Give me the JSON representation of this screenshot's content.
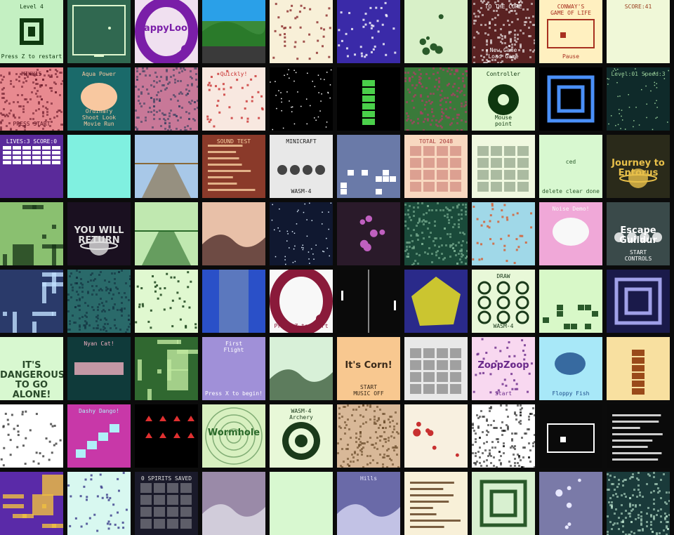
{
  "page": {
    "background": "#0b0b0b"
  },
  "tiles": [
    {
      "bg": "#c4f0c2",
      "fg": "#0f380f",
      "labels": [
        "Level 4",
        "",
        "Press Z to restart"
      ],
      "art": "qr"
    },
    {
      "bg": "#306850",
      "fg": "#e0f8d0",
      "labels": [
        "",
        "",
        ""
      ],
      "art": "breakout"
    },
    {
      "bg": "#f0e0f0",
      "fg": "#7a1ea8",
      "labels": [
        "",
        "TappyLoop",
        ""
      ],
      "art": "ring"
    },
    {
      "bg": "#3a8a3a",
      "fg": "#ffffff",
      "labels": [
        "",
        "",
        ""
      ],
      "art": "landscape"
    },
    {
      "bg": "#f8f0d8",
      "fg": "#8a2a2a",
      "labels": [
        "",
        "",
        ""
      ],
      "art": "scatter"
    },
    {
      "bg": "#3a2aa8",
      "fg": "#ffffff",
      "labels": [
        "",
        "",
        ""
      ],
      "art": "scatter"
    },
    {
      "bg": "#d8f0c8",
      "fg": "#2a5a2a",
      "labels": [
        "",
        "",
        ""
      ],
      "art": "dots"
    },
    {
      "bg": "#5a2222",
      "fg": "#ffffff",
      "labels": [
        "TO THE CORE",
        "",
        "New Game\nLoad Game"
      ],
      "art": "noise"
    },
    {
      "bg": "#fff0c0",
      "fg": "#a83020",
      "labels": [
        "CONWAY'S\nGAME OF LIFE",
        "",
        "Pause"
      ],
      "art": "window"
    },
    {
      "bg": "#f0f8d8",
      "fg": "#9a4020",
      "labels": [
        "SCORE:41",
        "",
        ""
      ],
      "art": "none"
    },
    {
      "bg": "#e88a90",
      "fg": "#601020",
      "labels": [
        "MIKU15",
        "",
        "PRESS START"
      ],
      "art": "noise"
    },
    {
      "bg": "#1a6a6a",
      "fg": "#f8c8a0",
      "labels": [
        "Aqua Power",
        "",
        "Ordinary\nShoot Look\nMovie Run"
      ],
      "art": "blob"
    },
    {
      "bg": "#c87898",
      "fg": "#2a3a5a",
      "labels": [
        "",
        "",
        ""
      ],
      "art": "noise"
    },
    {
      "bg": "#f8e8e0",
      "fg": "#c83030",
      "labels": [
        "Quickly!",
        "",
        ""
      ],
      "art": "scatter"
    },
    {
      "bg": "#000000",
      "fg": "#ffffff",
      "labels": [
        "",
        "",
        ""
      ],
      "art": "stars"
    },
    {
      "bg": "#000000",
      "fg": "#4ad04a",
      "labels": [
        "",
        "",
        ""
      ],
      "art": "tower"
    },
    {
      "bg": "#3a7a3a",
      "fg": "#c83070",
      "labels": [
        "",
        "",
        ""
      ],
      "art": "noise"
    },
    {
      "bg": "#e0f8d0",
      "fg": "#0f380f",
      "labels": [
        "Controller",
        "",
        "Mouse\npoint"
      ],
      "art": "disc"
    },
    {
      "bg": "#000000",
      "fg": "#4a90f8",
      "labels": [
        "",
        "",
        ""
      ],
      "art": "frame"
    },
    {
      "bg": "#0f2a2a",
      "fg": "#9ad09a",
      "labels": [
        "Level:01 Speed:3",
        "",
        ""
      ],
      "art": "stars"
    },
    {
      "bg": "#5a2a9a",
      "fg": "#ffffff",
      "labels": [
        "LIVES:3  SCORE:0",
        "",
        ""
      ],
      "art": "bricks"
    },
    {
      "bg": "#80f0e0",
      "fg": "#2a5a7a",
      "labels": [
        "",
        "",
        ""
      ],
      "art": "none"
    },
    {
      "bg": "#a8c8e8",
      "fg": "#8a6a3a",
      "labels": [
        "",
        "",
        ""
      ],
      "art": "road"
    },
    {
      "bg": "#8a3a2a",
      "fg": "#f8d0a0",
      "labels": [
        "SOUND TEST",
        "",
        ""
      ],
      "art": "lines"
    },
    {
      "bg": "#e8e8e8",
      "fg": "#1a1a1a",
      "labels": [
        "MINICRAFT",
        "",
        "WASM-4"
      ],
      "art": "trees"
    },
    {
      "bg": "#6a7aa8",
      "fg": "#ffffff",
      "labels": [
        "",
        "",
        ""
      ],
      "art": "tetris"
    },
    {
      "bg": "#f8d8c0",
      "fg": "#a83a3a",
      "labels": [
        "TOTAL 2048",
        "",
        ""
      ],
      "art": "cells"
    },
    {
      "bg": "#f0f8e0",
      "fg": "#2a4a2a",
      "labels": [
        "",
        "",
        ""
      ],
      "art": "cells"
    },
    {
      "bg": "#d8f8d0",
      "fg": "#2a5a2a",
      "labels": [
        "",
        "ced",
        "delete clear done"
      ],
      "art": "none"
    },
    {
      "bg": "#2a2a1a",
      "fg": "#e8c04a",
      "labels": [
        "",
        "Journey to Entorus",
        ""
      ],
      "art": "planet"
    },
    {
      "bg": "#8ac070",
      "fg": "#1a3a1a",
      "labels": [
        "",
        "",
        ""
      ],
      "art": "maze"
    },
    {
      "bg": "#1a1020",
      "fg": "#e0e0e0",
      "labels": [
        "",
        "YOU WILL RETURN",
        ""
      ],
      "art": "planet"
    },
    {
      "bg": "#c0e8b0",
      "fg": "#2a6a2a",
      "labels": [
        "",
        "",
        ""
      ],
      "art": "road"
    },
    {
      "bg": "#e8c0a8",
      "fg": "#3a1a1a",
      "labels": [
        "",
        "",
        ""
      ],
      "art": "hills"
    },
    {
      "bg": "#101830",
      "fg": "#e0f0ff",
      "labels": [
        "",
        "",
        ""
      ],
      "art": "stars"
    },
    {
      "bg": "#2a1a2a",
      "fg": "#c060c0",
      "labels": [
        "",
        "",
        ""
      ],
      "art": "dots"
    },
    {
      "bg": "#1a4a3a",
      "fg": "#8ac0a0",
      "labels": [
        "",
        "",
        ""
      ],
      "art": "noise"
    },
    {
      "bg": "#a0d8e8",
      "fg": "#d85a2a",
      "labels": [
        "",
        "",
        ""
      ],
      "art": "scatter"
    },
    {
      "bg": "#f0a8d8",
      "fg": "#f8f8f8",
      "labels": [
        "Noise Demo!",
        "",
        ""
      ],
      "art": "blob"
    },
    {
      "bg": "#3a4a4a",
      "fg": "#ffffff",
      "labels": [
        "",
        "Escape Guildur",
        "START\nCONTROLS"
      ],
      "art": "trees"
    },
    {
      "bg": "#2a3a6a",
      "fg": "#c0e0ff",
      "labels": [
        "",
        "",
        ""
      ],
      "art": "maze"
    },
    {
      "bg": "#2a6a6a",
      "fg": "#0f2a3a",
      "labels": [
        "",
        "",
        ""
      ],
      "art": "noise"
    },
    {
      "bg": "#e0f8d0",
      "fg": "#0f380f",
      "labels": [
        "",
        "",
        ""
      ],
      "art": "scatter"
    },
    {
      "bg": "#2a50c8",
      "fg": "#f0f0a0",
      "labels": [
        "",
        "",
        ""
      ],
      "art": "river"
    },
    {
      "bg": "#f8f8f8",
      "fg": "#8a1a3a",
      "labels": [
        "",
        "",
        "Press Z to Start"
      ],
      "art": "ring"
    },
    {
      "bg": "#0a0a0a",
      "fg": "#ffffff",
      "labels": [
        "",
        "",
        ""
      ],
      "art": "pong"
    },
    {
      "bg": "#2a2a8a",
      "fg": "#e8e020",
      "labels": [
        "",
        "",
        ""
      ],
      "art": "cube"
    },
    {
      "bg": "#e8f8d8",
      "fg": "#1a3a1a",
      "labels": [
        "DRAW",
        "",
        "WASM-4"
      ],
      "art": "tictac"
    },
    {
      "bg": "#d8f8c8",
      "fg": "#2a5a2a",
      "labels": [
        "",
        "",
        ""
      ],
      "art": "tetris"
    },
    {
      "bg": "#1a1a4a",
      "fg": "#a0a0e8",
      "labels": [
        "",
        "",
        ""
      ],
      "art": "frame"
    },
    {
      "bg": "#d8f8d0",
      "fg": "#2a4a2a",
      "labels": [
        "",
        "IT'S DANGEROUS\nTO GO ALONE!",
        ""
      ],
      "art": "none"
    },
    {
      "bg": "#0f3a3a",
      "fg": "#f0b0c0",
      "labels": [
        "Nyan Cat!",
        "",
        ""
      ],
      "art": "nyan"
    },
    {
      "bg": "#306830",
      "fg": "#c0e8a0",
      "labels": [
        "",
        "",
        ""
      ],
      "art": "maze"
    },
    {
      "bg": "#a090d8",
      "fg": "#ffffff",
      "labels": [
        "First\nFlight",
        "",
        "Press X to begin!"
      ],
      "art": "none"
    },
    {
      "bg": "#d8f0d8",
      "fg": "#2a4a2a",
      "labels": [
        "",
        "",
        ""
      ],
      "art": "hills"
    },
    {
      "bg": "#f8c890",
      "fg": "#3a2a1a",
      "labels": [
        "",
        "It's Corn!",
        "START\nMUSIC OFF"
      ],
      "art": "none"
    },
    {
      "bg": "#e8e8e8",
      "fg": "#1a1a1a",
      "labels": [
        "",
        "",
        ""
      ],
      "art": "cells"
    },
    {
      "bg": "#f8d8f0",
      "fg": "#6a2a8a",
      "labels": [
        "",
        "ZoopZoop",
        "Start"
      ],
      "art": "scatter"
    },
    {
      "bg": "#a8e8f8",
      "fg": "#1a4a8a",
      "labels": [
        "",
        "",
        "Floppy Fish"
      ],
      "art": "fish"
    },
    {
      "bg": "#f8e0a0",
      "fg": "#9a4a1a",
      "labels": [
        "",
        "",
        ""
      ],
      "art": "tower"
    },
    {
      "bg": "#ffffff",
      "fg": "#3a3a3a",
      "labels": [
        "",
        "",
        ""
      ],
      "art": "scatter"
    },
    {
      "bg": "#c838a8",
      "fg": "#b0f0f8",
      "labels": [
        "Dashy Dango!",
        "",
        ""
      ],
      "art": "stairs"
    },
    {
      "bg": "#000000",
      "fg": "#e03030",
      "labels": [
        "",
        "",
        ""
      ],
      "art": "arrows"
    },
    {
      "bg": "#d8f0c0",
      "fg": "#2a6a2a",
      "labels": [
        "",
        "Wormhole",
        ""
      ],
      "art": "rings"
    },
    {
      "bg": "#e8f8d8",
      "fg": "#1a3a1a",
      "labels": [
        "WASM-4\nArchery",
        "",
        ""
      ],
      "art": "target"
    },
    {
      "bg": "#d8b898",
      "fg": "#5a3a1a",
      "labels": [
        "",
        "",
        ""
      ],
      "art": "noise"
    },
    {
      "bg": "#f8f0e0",
      "fg": "#c83030",
      "labels": [
        "",
        "",
        ""
      ],
      "art": "dots"
    },
    {
      "bg": "#ffffff",
      "fg": "#0a0a0a",
      "labels": [
        "",
        "",
        ""
      ],
      "art": "noise"
    },
    {
      "bg": "#0a0a0a",
      "fg": "#ffffff",
      "labels": [
        "",
        "",
        ""
      ],
      "art": "window"
    },
    {
      "bg": "#0a0a0a",
      "fg": "#ffffff",
      "labels": [
        "",
        "",
        ""
      ],
      "art": "lines"
    },
    {
      "bg": "#5a2aa8",
      "fg": "#f0c040",
      "labels": [
        "",
        "",
        ""
      ],
      "art": "maze"
    },
    {
      "bg": "#d8f8f0",
      "fg": "#3a3a8a",
      "labels": [
        "",
        "",
        ""
      ],
      "art": "scatter"
    },
    {
      "bg": "#1a1a2a",
      "fg": "#e0e0e0",
      "labels": [
        "0 SPIRITS SAVED",
        "",
        ""
      ],
      "art": "cells"
    },
    {
      "bg": "#9a8aa8",
      "fg": "#e8e8f0",
      "labels": [
        "",
        "",
        ""
      ],
      "art": "hills"
    },
    {
      "bg": "#d8f8d0",
      "fg": "#2a4a2a",
      "labels": [
        "",
        "",
        ""
      ],
      "art": "none"
    },
    {
      "bg": "#6a6aa8",
      "fg": "#e8e8ff",
      "labels": [
        "Hills",
        "",
        ""
      ],
      "art": "hills"
    },
    {
      "bg": "#f8f0d8",
      "fg": "#5a3a1a",
      "labels": [
        "",
        "",
        ""
      ],
      "art": "lines"
    },
    {
      "bg": "#d8f0d0",
      "fg": "#2a5a2a",
      "labels": [
        "",
        "",
        ""
      ],
      "art": "frame"
    },
    {
      "bg": "#7a7aa8",
      "fg": "#e8e8ff",
      "labels": [
        "",
        "",
        ""
      ],
      "art": "dots"
    },
    {
      "bg": "#1a3a3a",
      "fg": "#c8f0d8",
      "labels": [
        "",
        "",
        ""
      ],
      "art": "noise"
    }
  ]
}
